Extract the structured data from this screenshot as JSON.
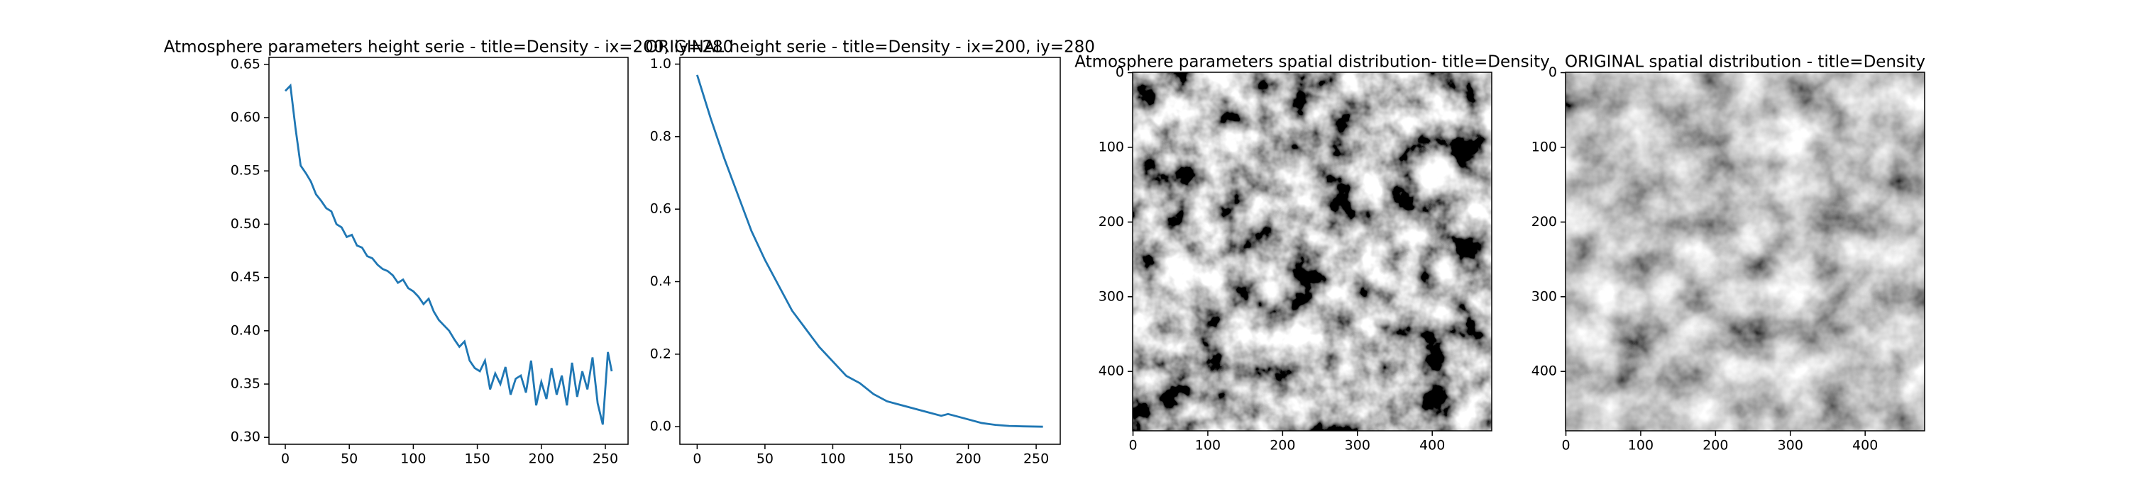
{
  "chart_data": [
    {
      "type": "line",
      "title": "Atmosphere parameters height serie - title=Density - ix=200, iy=280",
      "x": [
        0,
        4,
        8,
        12,
        16,
        20,
        24,
        28,
        32,
        36,
        40,
        44,
        48,
        52,
        56,
        60,
        64,
        68,
        72,
        76,
        80,
        84,
        88,
        92,
        96,
        100,
        104,
        108,
        112,
        116,
        120,
        124,
        128,
        132,
        136,
        140,
        144,
        148,
        152,
        156,
        160,
        164,
        168,
        172,
        176,
        180,
        184,
        188,
        192,
        196,
        200,
        204,
        208,
        212,
        216,
        220,
        224,
        228,
        232,
        236,
        240,
        244,
        248,
        252,
        255
      ],
      "series": [
        {
          "color": "#1f77b4",
          "values": [
            0.625,
            0.63,
            0.59,
            0.555,
            0.548,
            0.54,
            0.528,
            0.522,
            0.515,
            0.512,
            0.5,
            0.497,
            0.488,
            0.49,
            0.48,
            0.478,
            0.47,
            0.468,
            0.462,
            0.458,
            0.456,
            0.452,
            0.445,
            0.448,
            0.44,
            0.437,
            0.432,
            0.425,
            0.43,
            0.418,
            0.41,
            0.405,
            0.4,
            0.392,
            0.385,
            0.39,
            0.372,
            0.365,
            0.362,
            0.372,
            0.345,
            0.36,
            0.35,
            0.366,
            0.34,
            0.355,
            0.358,
            0.342,
            0.372,
            0.33,
            0.352,
            0.336,
            0.365,
            0.34,
            0.358,
            0.33,
            0.37,
            0.338,
            0.362,
            0.345,
            0.375,
            0.332,
            0.312,
            0.38,
            0.362
          ]
        }
      ],
      "xlim": [
        -12.75,
        267.75
      ],
      "xticks": [
        0,
        50,
        100,
        150,
        200,
        250
      ],
      "ylim": [
        0.2935,
        0.6565
      ],
      "yticks": [
        {
          "value": 0.3,
          "label": "0.30"
        },
        0.35,
        {
          "value": 0.4,
          "label": "0.40"
        },
        0.45,
        {
          "value": 0.5,
          "label": "0.50"
        },
        0.55,
        {
          "value": 0.6,
          "label": "0.60"
        },
        0.65
      ]
    },
    {
      "type": "line",
      "title": "ORIGINAL height serie - title=Density - ix=200, iy=280",
      "x": [
        0,
        10,
        20,
        30,
        40,
        50,
        60,
        70,
        80,
        90,
        100,
        110,
        120,
        130,
        140,
        150,
        160,
        170,
        180,
        185,
        190,
        200,
        210,
        220,
        230,
        240,
        255
      ],
      "series": [
        {
          "color": "#1f77b4",
          "values": [
            0.97,
            0.85,
            0.74,
            0.64,
            0.54,
            0.46,
            0.39,
            0.32,
            0.27,
            0.22,
            0.18,
            0.14,
            0.12,
            0.09,
            0.07,
            0.06,
            0.05,
            0.04,
            0.03,
            0.035,
            0.03,
            0.02,
            0.01,
            0.005,
            0.002,
            0.001,
            0.0
          ]
        }
      ],
      "xlim": [
        -12.75,
        267.75
      ],
      "xticks": [
        0,
        50,
        100,
        150,
        200,
        250
      ],
      "ylim": [
        -0.0485,
        1.0185
      ],
      "yticks": [
        {
          "value": 0,
          "label": "0.0"
        },
        0.2,
        0.4,
        0.6,
        0.8,
        {
          "value": 1,
          "label": "1.0"
        }
      ]
    },
    {
      "type": "image",
      "title": "Atmosphere parameters spatial distribution- title=Density",
      "xlim": [
        -0.5,
        479.5
      ],
      "xticks": [
        0,
        100,
        200,
        300,
        400
      ],
      "ylim": [
        479.5,
        -0.5
      ],
      "yticks": [
        0,
        100,
        200,
        300,
        400
      ]
    },
    {
      "type": "image",
      "title": "ORIGINAL spatial distribution - title=Density",
      "xlim": [
        -0.5,
        479.5
      ],
      "xticks": [
        0,
        100,
        200,
        300,
        400
      ],
      "ylim": [
        479.5,
        -0.5
      ],
      "yticks": [
        0,
        100,
        200,
        300,
        400
      ]
    }
  ]
}
